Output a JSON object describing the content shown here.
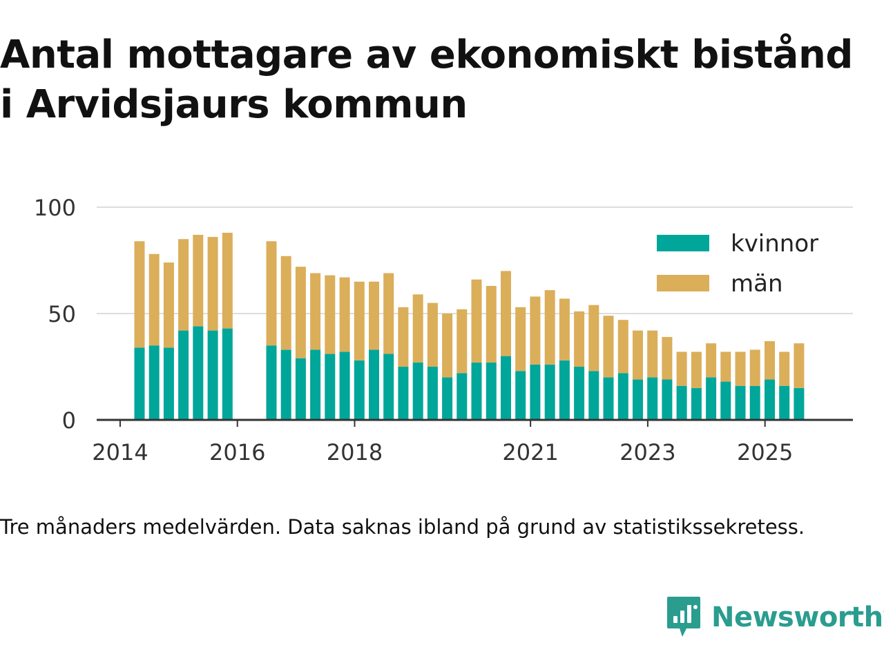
{
  "title_line1": "Antal mottagare av ekonomiskt bistånd",
  "title_line2": "i Arvidsjaurs kommun",
  "caption": "Tre månaders medelvärden. Data saknas ibland på grund av statistikssekretess.",
  "brand": {
    "name": "Newsworthy",
    "icon": "chat-bar-chart-icon",
    "color": "#2a9d8f"
  },
  "chart_data": {
    "type": "bar",
    "stacked": true,
    "ylim": [
      0,
      100
    ],
    "yticks": [
      0,
      50,
      100
    ],
    "x_range": [
      2013.6,
      2026.5
    ],
    "xticks": [
      {
        "value": 2014,
        "label": "2014"
      },
      {
        "value": 2016,
        "label": "2016"
      },
      {
        "value": 2018,
        "label": "2018"
      },
      {
        "value": 2021,
        "label": "2021"
      },
      {
        "value": 2023,
        "label": "2023"
      },
      {
        "value": 2025,
        "label": "2025"
      }
    ],
    "legend": [
      {
        "label": "kvinnor",
        "color": "#00a699"
      },
      {
        "label": "män",
        "color": "#dbae5a"
      }
    ],
    "legend_position": "top-right",
    "x": [
      2014.33,
      2014.58,
      2014.83,
      2015.08,
      2015.33,
      2015.58,
      2015.83,
      2016.58,
      2016.83,
      2017.08,
      2017.33,
      2017.58,
      2017.83,
      2018.08,
      2018.33,
      2018.58,
      2018.83,
      2019.08,
      2019.33,
      2019.58,
      2019.83,
      2020.08,
      2020.33,
      2020.58,
      2020.83,
      2021.08,
      2021.33,
      2021.58,
      2021.83,
      2022.08,
      2022.33,
      2022.58,
      2022.83,
      2023.08,
      2023.33,
      2023.58,
      2023.83,
      2024.08,
      2024.33,
      2024.58,
      2024.83,
      2025.08,
      2025.33,
      2025.58
    ],
    "series": [
      {
        "name": "kvinnor",
        "color": "#00a699",
        "values": [
          34,
          35,
          34,
          42,
          44,
          42,
          43,
          35,
          33,
          29,
          33,
          31,
          32,
          28,
          33,
          31,
          25,
          27,
          25,
          20,
          22,
          27,
          27,
          30,
          23,
          26,
          26,
          28,
          25,
          23,
          20,
          22,
          19,
          20,
          19,
          16,
          15,
          20,
          18,
          16,
          16,
          19,
          16,
          15
        ]
      },
      {
        "name": "män",
        "color": "#dbae5a",
        "values": [
          50,
          43,
          40,
          43,
          43,
          44,
          45,
          49,
          44,
          43,
          36,
          37,
          35,
          37,
          32,
          38,
          28,
          32,
          30,
          30,
          30,
          39,
          36,
          40,
          30,
          32,
          35,
          29,
          26,
          31,
          29,
          25,
          23,
          22,
          20,
          16,
          17,
          16,
          14,
          16,
          17,
          18,
          16,
          21
        ]
      }
    ]
  }
}
